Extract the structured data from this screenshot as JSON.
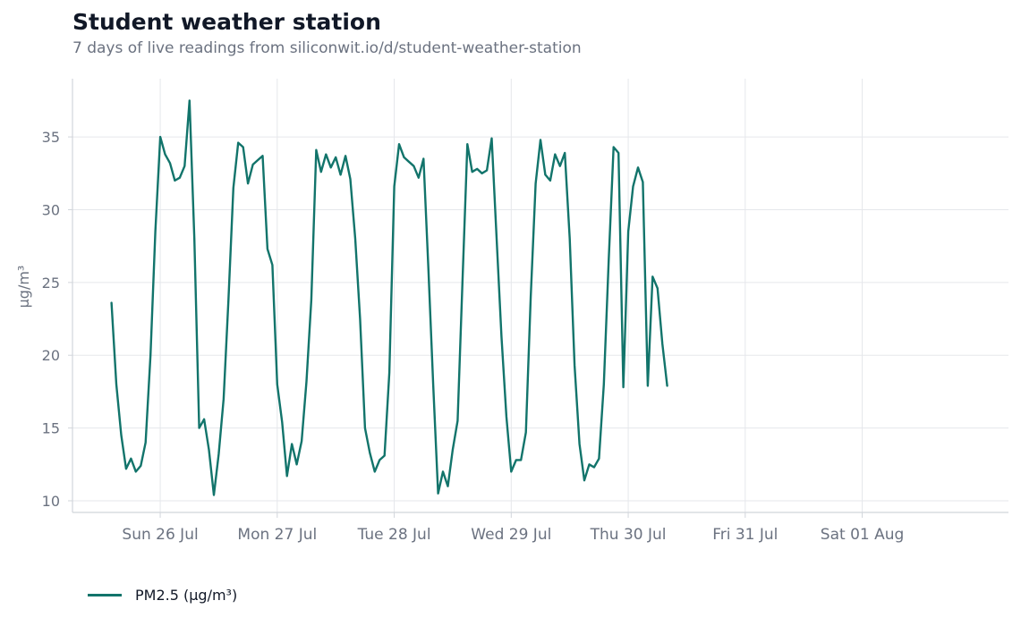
{
  "header": {
    "title": "Student weather station",
    "subtitle": "7 days of live readings from siliconwit.io/d/student-weather-station"
  },
  "colors": {
    "series": "#12746b",
    "axis": "#d1d5db",
    "grid": "#e5e7eb",
    "tick_text": "#6b7280"
  },
  "chart_data": {
    "type": "line",
    "title": "Student weather station",
    "subtitle": "7 days of live readings from siliconwit.io/d/student-weather-station",
    "xlabel": "",
    "ylabel": "µg/m³",
    "ylim": [
      9.2,
      39
    ],
    "xlim": [
      "2026-07-25T06:00",
      "2026-08-02T06:00"
    ],
    "yticks": [
      10,
      15,
      20,
      25,
      30,
      35
    ],
    "xticks": [
      {
        "at": "2026-07-26T00:00",
        "label": "Sun 26 Jul"
      },
      {
        "at": "2026-07-27T00:00",
        "label": "Mon 27 Jul"
      },
      {
        "at": "2026-07-28T00:00",
        "label": "Tue 28 Jul"
      },
      {
        "at": "2026-07-29T00:00",
        "label": "Wed 29 Jul"
      },
      {
        "at": "2026-07-30T00:00",
        "label": "Thu 30 Jul"
      },
      {
        "at": "2026-07-31T00:00",
        "label": "Fri 31 Jul"
      },
      {
        "at": "2026-08-01T00:00",
        "label": "Sat 01 Aug"
      }
    ],
    "grid": true,
    "legend_position": "bottom-left",
    "series": [
      {
        "name": "PM2.5 (µg/m³)",
        "points": [
          [
            "2026-07-25T14:00",
            23.6
          ],
          [
            "2026-07-25T15:00",
            18.0
          ],
          [
            "2026-07-25T16:00",
            14.5
          ],
          [
            "2026-07-25T17:00",
            12.2
          ],
          [
            "2026-07-25T18:00",
            12.9
          ],
          [
            "2026-07-25T19:00",
            12.0
          ],
          [
            "2026-07-25T20:00",
            12.4
          ],
          [
            "2026-07-25T21:00",
            14.0
          ],
          [
            "2026-07-25T22:00",
            20.0
          ],
          [
            "2026-07-25T23:00",
            28.5
          ],
          [
            "2026-07-26T00:00",
            35.0
          ],
          [
            "2026-07-26T01:00",
            33.8
          ],
          [
            "2026-07-26T02:00",
            33.2
          ],
          [
            "2026-07-26T03:00",
            32.0
          ],
          [
            "2026-07-26T04:00",
            32.2
          ],
          [
            "2026-07-26T05:00",
            33.0
          ],
          [
            "2026-07-26T06:00",
            37.5
          ],
          [
            "2026-07-26T07:00",
            28.0
          ],
          [
            "2026-07-26T08:00",
            15.0
          ],
          [
            "2026-07-26T09:00",
            15.6
          ],
          [
            "2026-07-26T10:00",
            13.5
          ],
          [
            "2026-07-26T11:00",
            10.4
          ],
          [
            "2026-07-26T12:00",
            13.2
          ],
          [
            "2026-07-26T13:00",
            17.0
          ],
          [
            "2026-07-26T14:00",
            23.8
          ],
          [
            "2026-07-26T15:00",
            31.5
          ],
          [
            "2026-07-26T16:00",
            34.6
          ],
          [
            "2026-07-26T17:00",
            34.3
          ],
          [
            "2026-07-26T18:00",
            31.8
          ],
          [
            "2026-07-26T19:00",
            33.1
          ],
          [
            "2026-07-26T20:00",
            33.4
          ],
          [
            "2026-07-26T21:00",
            33.7
          ],
          [
            "2026-07-26T22:00",
            27.3
          ],
          [
            "2026-07-26T23:00",
            26.2
          ],
          [
            "2026-07-27T00:00",
            18.0
          ],
          [
            "2026-07-27T01:00",
            15.4
          ],
          [
            "2026-07-27T02:00",
            11.7
          ],
          [
            "2026-07-27T03:00",
            13.9
          ],
          [
            "2026-07-27T04:00",
            12.5
          ],
          [
            "2026-07-27T05:00",
            14.1
          ],
          [
            "2026-07-27T06:00",
            18.2
          ],
          [
            "2026-07-27T07:00",
            23.8
          ],
          [
            "2026-07-27T08:00",
            34.1
          ],
          [
            "2026-07-27T09:00",
            32.6
          ],
          [
            "2026-07-27T10:00",
            33.8
          ],
          [
            "2026-07-27T11:00",
            32.9
          ],
          [
            "2026-07-27T12:00",
            33.6
          ],
          [
            "2026-07-27T13:00",
            32.4
          ],
          [
            "2026-07-27T14:00",
            33.7
          ],
          [
            "2026-07-27T15:00",
            32.1
          ],
          [
            "2026-07-27T16:00",
            28.0
          ],
          [
            "2026-07-27T17:00",
            22.5
          ],
          [
            "2026-07-27T18:00",
            15.0
          ],
          [
            "2026-07-27T19:00",
            13.3
          ],
          [
            "2026-07-27T20:00",
            12.0
          ],
          [
            "2026-07-27T21:00",
            12.8
          ],
          [
            "2026-07-27T22:00",
            13.1
          ],
          [
            "2026-07-27T23:00",
            18.8
          ],
          [
            "2026-07-28T00:00",
            31.6
          ],
          [
            "2026-07-28T01:00",
            34.5
          ],
          [
            "2026-07-28T02:00",
            33.6
          ],
          [
            "2026-07-28T03:00",
            33.3
          ],
          [
            "2026-07-28T04:00",
            33.0
          ],
          [
            "2026-07-28T05:00",
            32.2
          ],
          [
            "2026-07-28T06:00",
            33.5
          ],
          [
            "2026-07-28T07:00",
            26.0
          ],
          [
            "2026-07-28T08:00",
            18.0
          ],
          [
            "2026-07-28T09:00",
            10.5
          ],
          [
            "2026-07-28T10:00",
            12.0
          ],
          [
            "2026-07-28T11:00",
            11.0
          ],
          [
            "2026-07-28T12:00",
            13.5
          ],
          [
            "2026-07-28T13:00",
            15.5
          ],
          [
            "2026-07-28T14:00",
            25.0
          ],
          [
            "2026-07-28T15:00",
            34.5
          ],
          [
            "2026-07-28T16:00",
            32.6
          ],
          [
            "2026-07-28T17:00",
            32.8
          ],
          [
            "2026-07-28T18:00",
            32.5
          ],
          [
            "2026-07-28T19:00",
            32.7
          ],
          [
            "2026-07-28T20:00",
            34.9
          ],
          [
            "2026-07-28T21:00",
            28.0
          ],
          [
            "2026-07-28T22:00",
            21.3
          ],
          [
            "2026-07-28T23:00",
            15.8
          ],
          [
            "2026-07-29T00:00",
            12.0
          ],
          [
            "2026-07-29T01:00",
            12.8
          ],
          [
            "2026-07-29T02:00",
            12.8
          ],
          [
            "2026-07-29T03:00",
            14.7
          ],
          [
            "2026-07-29T04:00",
            24.0
          ],
          [
            "2026-07-29T05:00",
            31.8
          ],
          [
            "2026-07-29T06:00",
            34.8
          ],
          [
            "2026-07-29T07:00",
            32.4
          ],
          [
            "2026-07-29T08:00",
            32.0
          ],
          [
            "2026-07-29T09:00",
            33.8
          ],
          [
            "2026-07-29T10:00",
            33.0
          ],
          [
            "2026-07-29T11:00",
            33.9
          ],
          [
            "2026-07-29T12:00",
            28.0
          ],
          [
            "2026-07-29T13:00",
            19.3
          ],
          [
            "2026-07-29T14:00",
            13.9
          ],
          [
            "2026-07-29T15:00",
            11.4
          ],
          [
            "2026-07-29T16:00",
            12.5
          ],
          [
            "2026-07-29T17:00",
            12.3
          ],
          [
            "2026-07-29T18:00",
            12.9
          ],
          [
            "2026-07-29T19:00",
            18.0
          ],
          [
            "2026-07-29T20:00",
            26.6
          ],
          [
            "2026-07-29T21:00",
            34.3
          ],
          [
            "2026-07-29T22:00",
            33.9
          ],
          [
            "2026-07-29T23:00",
            17.8
          ],
          [
            "2026-07-30T00:00",
            28.5
          ],
          [
            "2026-07-30T01:00",
            31.6
          ],
          [
            "2026-07-30T02:00",
            32.9
          ],
          [
            "2026-07-30T03:00",
            31.9
          ],
          [
            "2026-07-30T04:00",
            17.9
          ],
          [
            "2026-07-30T05:00",
            25.4
          ],
          [
            "2026-07-30T06:00",
            24.6
          ],
          [
            "2026-07-30T07:00",
            20.8
          ],
          [
            "2026-07-30T08:00",
            17.9
          ]
        ]
      }
    ]
  },
  "legend": {
    "label": "PM2.5 (µg/m³)"
  }
}
